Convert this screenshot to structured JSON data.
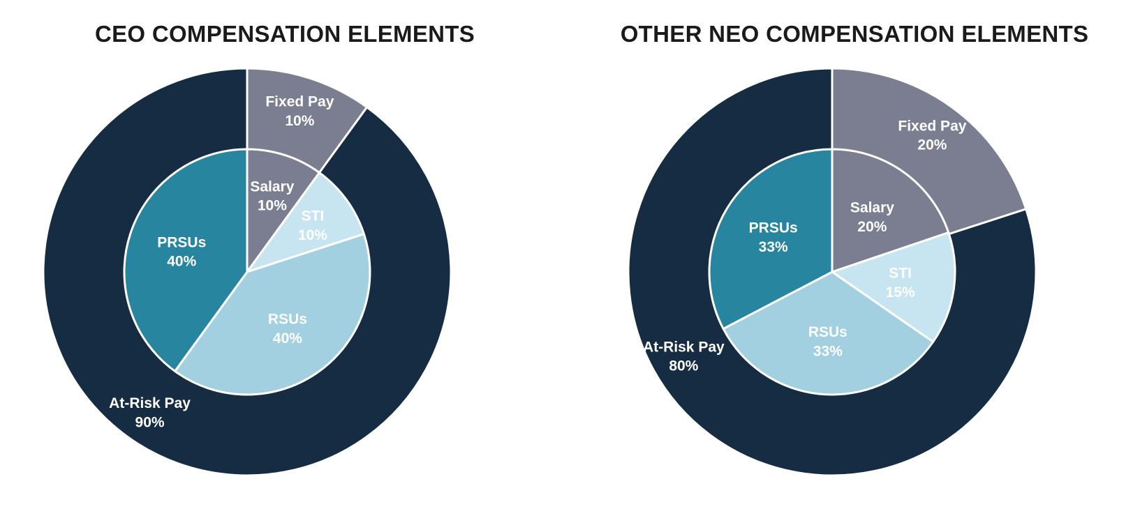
{
  "colors": {
    "fixed_pay": "#7b7e91",
    "at_risk_pay": "#152c42",
    "salary": "#7b7e91",
    "sti": "#c6e5f0",
    "rsus": "#a3d0e0",
    "prsus": "#2885a0",
    "separator": "#ffffff"
  },
  "chart_data": [
    {
      "type": "pie",
      "title": "CEO COMPENSATION ELEMENTS",
      "outer_ring": {
        "slices": [
          {
            "name": "Fixed Pay",
            "value": 10,
            "label": "10%",
            "color_key": "fixed_pay"
          },
          {
            "name": "At-Risk Pay",
            "value": 90,
            "label": "90%",
            "color_key": "at_risk_pay"
          }
        ]
      },
      "inner_pie": {
        "slices": [
          {
            "name": "Salary",
            "value": 10,
            "label": "10%",
            "color_key": "salary"
          },
          {
            "name": "STI",
            "value": 10,
            "label": "10%",
            "color_key": "sti"
          },
          {
            "name": "RSUs",
            "value": 40,
            "label": "40%",
            "color_key": "rsus"
          },
          {
            "name": "PRSUs",
            "value": 40,
            "label": "40%",
            "color_key": "prsus"
          }
        ]
      }
    },
    {
      "type": "pie",
      "title": "OTHER NEO COMPENSATION ELEMENTS",
      "outer_ring": {
        "slices": [
          {
            "name": "Fixed Pay",
            "value": 20,
            "label": "20%",
            "color_key": "fixed_pay"
          },
          {
            "name": "At-Risk Pay",
            "value": 80,
            "label": "80%",
            "color_key": "at_risk_pay"
          }
        ]
      },
      "inner_pie": {
        "slices": [
          {
            "name": "Salary",
            "value": 20,
            "label": "20%",
            "color_key": "salary"
          },
          {
            "name": "STI",
            "value": 15,
            "label": "15%",
            "color_key": "sti"
          },
          {
            "name": "RSUs",
            "value": 33,
            "label": "33%",
            "color_key": "rsus"
          },
          {
            "name": "PRSUs",
            "value": 33,
            "label": "33%",
            "color_key": "prsus"
          }
        ]
      }
    }
  ]
}
